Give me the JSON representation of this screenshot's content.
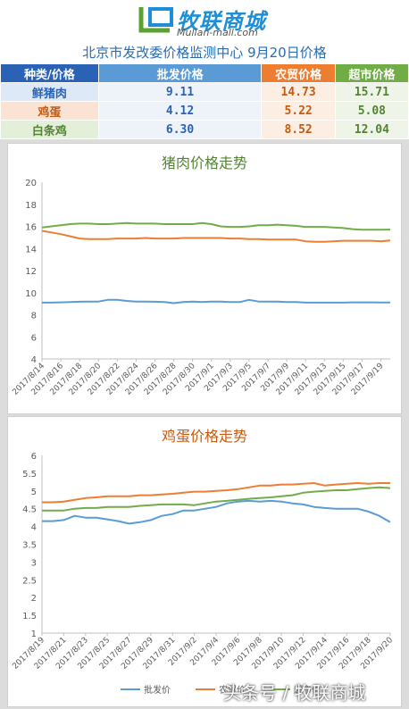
{
  "logo": {
    "name": "牧联商城",
    "url": "Mulian-mall.com"
  },
  "title": "北京市发改委价格监测中心  9月20日价格",
  "table": {
    "headers": [
      "种类/价格",
      "批发价格",
      "农贸价格",
      "超市价格"
    ],
    "rows": [
      {
        "name": "鲜猪肉",
        "wholesale": "9.11",
        "farm": "14.73",
        "supermarket": "15.71"
      },
      {
        "name": "鸡蛋",
        "wholesale": "4.12",
        "farm": "5.22",
        "supermarket": "5.08"
      },
      {
        "name": "白条鸡",
        "wholesale": "6.30",
        "farm": "8.52",
        "supermarket": "12.04"
      }
    ]
  },
  "colors": {
    "wholesale": "#5b9bd5",
    "farm": "#ed7d31",
    "supermarket": "#70ad47",
    "title_green": "#548235",
    "title_orange": "#c55a11"
  },
  "chart_data": [
    {
      "type": "line",
      "title": "猪肉价格走势",
      "ylim": [
        4,
        20
      ],
      "yticks": [
        4,
        6,
        8,
        10,
        12,
        14,
        16,
        18,
        20
      ],
      "grid": false,
      "legend": "none",
      "x": [
        "2017/8/14",
        "2017/8/15",
        "2017/8/16",
        "2017/8/17",
        "2017/8/18",
        "2017/8/19",
        "2017/8/20",
        "2017/8/21",
        "2017/8/22",
        "2017/8/23",
        "2017/8/24",
        "2017/8/25",
        "2017/8/26",
        "2017/8/27",
        "2017/8/28",
        "2017/8/29",
        "2017/8/30",
        "2017/8/31",
        "2017/9/1",
        "2017/9/2",
        "2017/9/3",
        "2017/9/4",
        "2017/9/5",
        "2017/9/6",
        "2017/9/7",
        "2017/9/8",
        "2017/9/9",
        "2017/9/10",
        "2017/9/11",
        "2017/9/12",
        "2017/9/13",
        "2017/9/14",
        "2017/9/15",
        "2017/9/16",
        "2017/9/17",
        "2017/9/18",
        "2017/9/19",
        "2017/9/20"
      ],
      "xtick_labels": [
        "2017/8/14",
        "2017/8/16",
        "2017/8/18",
        "2017/8/20",
        "2017/8/22",
        "2017/8/24",
        "2017/8/26",
        "2017/8/28",
        "2017/8/30",
        "2017/9/1",
        "2017/9/3",
        "2017/9/5",
        "2017/9/7",
        "2017/9/9",
        "2017/9/11",
        "2017/9/13",
        "2017/9/15",
        "2017/9/17",
        "2017/9/19"
      ],
      "series": [
        {
          "key": "wholesale",
          "values": [
            9.1,
            9.1,
            9.12,
            9.15,
            9.18,
            9.2,
            9.2,
            9.35,
            9.35,
            9.25,
            9.2,
            9.2,
            9.18,
            9.15,
            9.05,
            9.15,
            9.2,
            9.15,
            9.2,
            9.2,
            9.15,
            9.15,
            9.35,
            9.2,
            9.2,
            9.2,
            9.15,
            9.15,
            9.1,
            9.1,
            9.1,
            9.1,
            9.1,
            9.12,
            9.12,
            9.12,
            9.11,
            9.11
          ]
        },
        {
          "key": "farm",
          "values": [
            15.6,
            15.45,
            15.3,
            15.1,
            14.9,
            14.85,
            14.85,
            14.85,
            14.9,
            14.9,
            14.9,
            14.95,
            14.9,
            14.9,
            14.9,
            14.95,
            14.95,
            14.95,
            14.95,
            14.95,
            14.9,
            14.9,
            14.85,
            14.85,
            14.8,
            14.8,
            14.8,
            14.8,
            14.65,
            14.6,
            14.6,
            14.65,
            14.7,
            14.7,
            14.7,
            14.7,
            14.65,
            14.73
          ]
        },
        {
          "key": "supermarket",
          "values": [
            15.9,
            16.0,
            16.1,
            16.2,
            16.25,
            16.25,
            16.2,
            16.2,
            16.25,
            16.3,
            16.25,
            16.25,
            16.25,
            16.2,
            16.2,
            16.2,
            16.2,
            16.3,
            16.2,
            16.0,
            15.95,
            15.95,
            16.0,
            16.1,
            16.1,
            16.15,
            16.1,
            16.05,
            15.95,
            15.95,
            15.95,
            15.9,
            15.85,
            15.75,
            15.7,
            15.7,
            15.7,
            15.71
          ]
        }
      ]
    },
    {
      "type": "line",
      "title": "鸡蛋价格走势",
      "ylim": [
        1,
        6
      ],
      "yticks": [
        1,
        1.5,
        2,
        2.5,
        3,
        3.5,
        4,
        4.5,
        5,
        5.5,
        6
      ],
      "grid": false,
      "legend": "bottom",
      "x": [
        "2017/8/19",
        "2017/8/20",
        "2017/8/21",
        "2017/8/22",
        "2017/8/23",
        "2017/8/24",
        "2017/8/25",
        "2017/8/26",
        "2017/8/27",
        "2017/8/28",
        "2017/8/29",
        "2017/8/30",
        "2017/8/31",
        "2017/9/1",
        "2017/9/2",
        "2017/9/3",
        "2017/9/4",
        "2017/9/5",
        "2017/9/6",
        "2017/9/7",
        "2017/9/8",
        "2017/9/9",
        "2017/9/10",
        "2017/9/11",
        "2017/9/12",
        "2017/9/13",
        "2017/9/14",
        "2017/9/15",
        "2017/9/16",
        "2017/9/17",
        "2017/9/18",
        "2017/9/19",
        "2017/9/20"
      ],
      "xtick_labels": [
        "2017/8/19",
        "2017/8/21",
        "2017/8/23",
        "2017/8/25",
        "2017/8/27",
        "2017/8/29",
        "2017/8/31",
        "2017/9/2",
        "2017/9/4",
        "2017/9/6",
        "2017/9/8",
        "2017/9/10",
        "2017/9/12",
        "2017/9/14",
        "2017/9/16",
        "2017/9/18",
        "2017/9/20"
      ],
      "series": [
        {
          "key": "wholesale",
          "name": "批发价",
          "values": [
            4.15,
            4.15,
            4.18,
            4.3,
            4.25,
            4.25,
            4.2,
            4.15,
            4.08,
            4.12,
            4.18,
            4.3,
            4.35,
            4.45,
            4.45,
            4.5,
            4.55,
            4.65,
            4.7,
            4.72,
            4.7,
            4.72,
            4.7,
            4.65,
            4.62,
            4.55,
            4.52,
            4.5,
            4.5,
            4.5,
            4.42,
            4.3,
            4.12
          ]
        },
        {
          "key": "farm",
          "name": "农贸价",
          "values": [
            4.68,
            4.68,
            4.7,
            4.75,
            4.8,
            4.82,
            4.85,
            4.85,
            4.85,
            4.88,
            4.88,
            4.9,
            4.92,
            4.95,
            4.98,
            4.98,
            5.0,
            5.02,
            5.05,
            5.1,
            5.15,
            5.15,
            5.18,
            5.18,
            5.2,
            5.22,
            5.15,
            5.18,
            5.2,
            5.22,
            5.2,
            5.22,
            5.22
          ]
        },
        {
          "key": "supermarket",
          "name": "超市价",
          "values": [
            4.45,
            4.45,
            4.45,
            4.5,
            4.52,
            4.52,
            4.55,
            4.55,
            4.55,
            4.58,
            4.6,
            4.62,
            4.62,
            4.62,
            4.6,
            4.65,
            4.7,
            4.72,
            4.75,
            4.78,
            4.8,
            4.82,
            4.85,
            4.88,
            4.95,
            4.98,
            5.0,
            5.02,
            5.02,
            5.05,
            5.08,
            5.1,
            5.08
          ]
        }
      ]
    }
  ],
  "watermark": "头条号 / 牧联商城"
}
